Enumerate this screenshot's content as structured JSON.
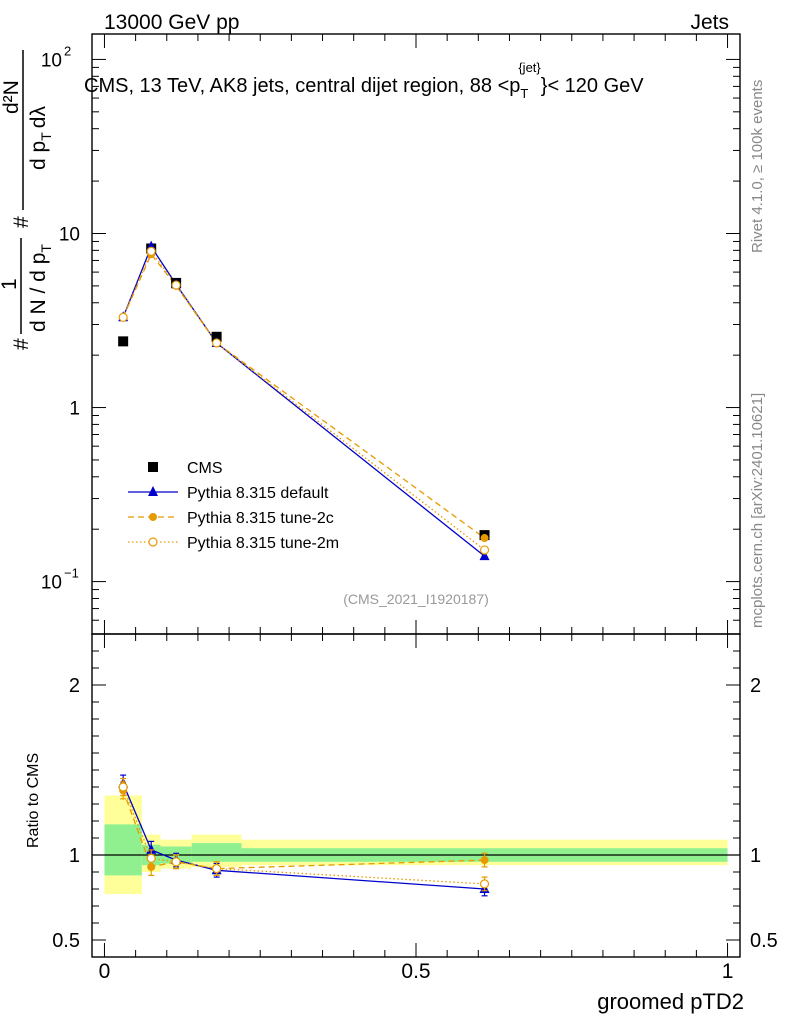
{
  "header": {
    "left": "13000 GeV pp",
    "right": "Jets"
  },
  "side_labels": {
    "rivet": "Rivet 4.1.0, ≥ 100k events",
    "mcplots": "mcplots.cern.ch [arXiv:2401.10621]"
  },
  "chart_data": {
    "type": "scatter",
    "title_parts": {
      "before": "CMS, 13 TeV, AK8 jets, central dijet region, 88 <p",
      "sub": "T",
      "sup": "{jet}",
      "after": "}< 120 GeV"
    },
    "watermark": "(CMS_2021_I1920187)",
    "xlabel": "groomed pTD2",
    "ylabel_top": {
      "num": "1",
      "den_main": "d N / d p",
      "den_sub": "T",
      "frac_num": "d²N",
      "frac_den": "d p",
      "frac_den_sub": "T",
      "frac_den_tail": "dλ",
      "hash": "#"
    },
    "ylabel_ratio": "Ratio to CMS",
    "xlim": [
      -0.02,
      1.02
    ],
    "ylim_top": [
      0.05,
      140
    ],
    "ylim_ratio": [
      0.4,
      2.3
    ],
    "x_ticks": [
      {
        "v": 0,
        "label": "0"
      },
      {
        "v": 0.5,
        "label": "0.5"
      },
      {
        "v": 1,
        "label": "1"
      }
    ],
    "y_ticks_top": [
      {
        "v": 0.1,
        "label": "10",
        "exp": "−1"
      },
      {
        "v": 1,
        "label": "1",
        "exp": ""
      },
      {
        "v": 10,
        "label": "10",
        "exp": ""
      },
      {
        "v": 100,
        "label": "10",
        "exp": "2"
      }
    ],
    "y_ticks_ratio": [
      {
        "v": 0.5,
        "label": "0.5"
      },
      {
        "v": 1,
        "label": "1"
      },
      {
        "v": 2,
        "label": "2"
      }
    ],
    "bins": [
      {
        "lo": 0.0,
        "hi": 0.06
      },
      {
        "lo": 0.06,
        "hi": 0.09
      },
      {
        "lo": 0.09,
        "hi": 0.14
      },
      {
        "lo": 0.14,
        "hi": 0.22
      },
      {
        "lo": 0.22,
        "hi": 1.0
      }
    ],
    "band_inner": [
      {
        "lo": 0.88,
        "hi": 1.18
      },
      {
        "lo": 0.94,
        "hi": 1.06
      },
      {
        "lo": 0.95,
        "hi": 1.05
      },
      {
        "lo": 0.96,
        "hi": 1.07
      },
      {
        "lo": 0.96,
        "hi": 1.04
      }
    ],
    "band_outer": [
      {
        "lo": 0.77,
        "hi": 1.35
      },
      {
        "lo": 0.9,
        "hi": 1.12
      },
      {
        "lo": 0.92,
        "hi": 1.09
      },
      {
        "lo": 0.93,
        "hi": 1.12
      },
      {
        "lo": 0.94,
        "hi": 1.09
      }
    ],
    "x": [
      0.03,
      0.075,
      0.115,
      0.18,
      0.61
    ],
    "series": [
      {
        "name": "CMS",
        "color": "#000000",
        "marker": "square",
        "line": "none",
        "values": [
          2.4,
          8.2,
          5.2,
          2.55,
          0.185
        ],
        "ratio": [
          1,
          1,
          1,
          1,
          1
        ],
        "ratio_err": [
          0,
          0,
          0,
          0,
          0
        ]
      },
      {
        "name": "Pythia 8.315 default",
        "color": "#0000cc",
        "marker": "triangle",
        "line": "solid",
        "values": [
          3.3,
          8.4,
          5.1,
          2.35,
          0.14
        ],
        "ratio": [
          1.42,
          1.03,
          0.97,
          0.91,
          0.8
        ],
        "ratio_err": [
          0.05,
          0.05,
          0.04,
          0.04,
          0.04
        ]
      },
      {
        "name": "Pythia 8.315 tune-2c",
        "color": "#e69a00",
        "marker": "circle",
        "line": "dashed",
        "values": [
          3.3,
          7.6,
          5.0,
          2.35,
          0.178
        ],
        "ratio": [
          1.38,
          0.93,
          0.96,
          0.92,
          0.97
        ],
        "ratio_err": [
          0.05,
          0.05,
          0.04,
          0.04,
          0.04
        ]
      },
      {
        "name": "Pythia 8.315 tune-2m",
        "color": "#e69a00",
        "marker": "circle-open",
        "line": "dotted",
        "values": [
          3.3,
          7.9,
          5.05,
          2.35,
          0.152
        ],
        "ratio": [
          1.4,
          0.98,
          0.96,
          0.92,
          0.83
        ],
        "ratio_err": [
          0.05,
          0.05,
          0.04,
          0.04,
          0.04
        ]
      }
    ],
    "colors": {
      "band_inner": "#90f090",
      "band_outer": "#ffff99",
      "axis": "#000000",
      "watermark": "#999999",
      "side_label": "#888888"
    }
  }
}
